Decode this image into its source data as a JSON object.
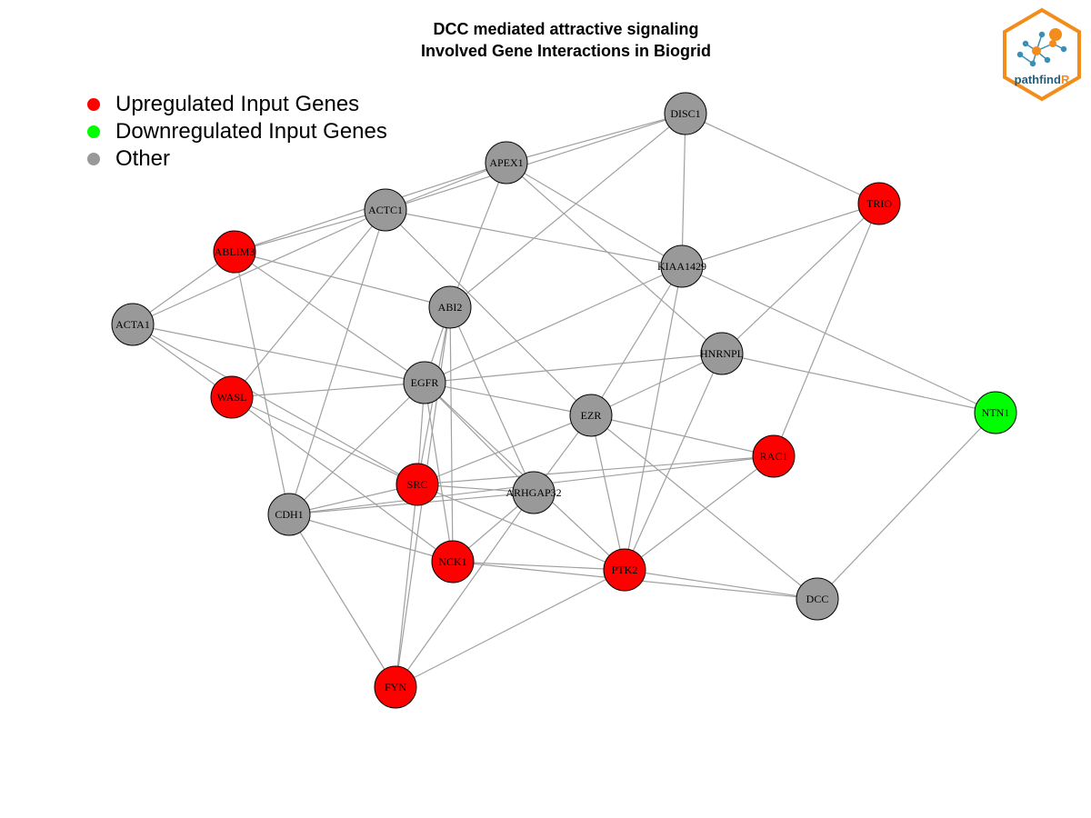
{
  "title": {
    "line1": "DCC mediated attractive signaling",
    "line2": "Involved Gene Interactions in Biogrid"
  },
  "legend": [
    {
      "label": "Upregulated Input Genes",
      "color": "#ff0000"
    },
    {
      "label": "Downregulated Input Genes",
      "color": "#00ff00"
    },
    {
      "label": "Other",
      "color": "#999999"
    }
  ],
  "logo": {
    "text_main": "pathfind",
    "text_accent": "R",
    "border_color": "#f28c1a",
    "text_color": "#1f5f7f"
  },
  "colors": {
    "up": "#ff0000",
    "down": "#00ff00",
    "other": "#999999",
    "edge": "#a0a0a0"
  },
  "nodes": [
    {
      "id": "DISC1",
      "status": "other"
    },
    {
      "id": "APEX1",
      "status": "other"
    },
    {
      "id": "TRIO",
      "status": "up"
    },
    {
      "id": "ACTC1",
      "status": "other"
    },
    {
      "id": "ABLIM3",
      "status": "up"
    },
    {
      "id": "KIAA1429",
      "status": "other"
    },
    {
      "id": "ABI2",
      "status": "other"
    },
    {
      "id": "ACTA1",
      "status": "other"
    },
    {
      "id": "HNRNPL",
      "status": "other"
    },
    {
      "id": "EGFR",
      "status": "other"
    },
    {
      "id": "WASL",
      "status": "up"
    },
    {
      "id": "NTN1",
      "status": "down"
    },
    {
      "id": "EZR",
      "status": "other"
    },
    {
      "id": "RAC1",
      "status": "up"
    },
    {
      "id": "SRC",
      "status": "up"
    },
    {
      "id": "ARHGAP32",
      "status": "other"
    },
    {
      "id": "CDH1",
      "status": "other"
    },
    {
      "id": "NCK1",
      "status": "up"
    },
    {
      "id": "PTK2",
      "status": "up"
    },
    {
      "id": "DCC",
      "status": "other"
    },
    {
      "id": "FYN",
      "status": "up"
    }
  ],
  "edges": [
    [
      "DISC1",
      "APEX1"
    ],
    [
      "DISC1",
      "TRIO"
    ],
    [
      "DISC1",
      "KIAA1429"
    ],
    [
      "DISC1",
      "ACTC1"
    ],
    [
      "DISC1",
      "ABI2"
    ],
    [
      "APEX1",
      "ACTC1"
    ],
    [
      "APEX1",
      "ABLIM3"
    ],
    [
      "APEX1",
      "ABI2"
    ],
    [
      "APEX1",
      "KIAA1429"
    ],
    [
      "APEX1",
      "HNRNPL"
    ],
    [
      "TRIO",
      "KIAA1429"
    ],
    [
      "TRIO",
      "HNRNPL"
    ],
    [
      "TRIO",
      "RAC1"
    ],
    [
      "ACTC1",
      "ABLIM3"
    ],
    [
      "ACTC1",
      "ACTA1"
    ],
    [
      "ACTC1",
      "KIAA1429"
    ],
    [
      "ACTC1",
      "WASL"
    ],
    [
      "ACTC1",
      "EZR"
    ],
    [
      "ACTC1",
      "CDH1"
    ],
    [
      "ABLIM3",
      "ACTA1"
    ],
    [
      "ABLIM3",
      "ABI2"
    ],
    [
      "ABLIM3",
      "EGFR"
    ],
    [
      "ABLIM3",
      "CDH1"
    ],
    [
      "KIAA1429",
      "EGFR"
    ],
    [
      "KIAA1429",
      "EZR"
    ],
    [
      "KIAA1429",
      "PTK2"
    ],
    [
      "KIAA1429",
      "NTN1"
    ],
    [
      "ABI2",
      "EGFR"
    ],
    [
      "ABI2",
      "NCK1"
    ],
    [
      "ABI2",
      "ARHGAP32"
    ],
    [
      "ABI2",
      "FYN"
    ],
    [
      "ABI2",
      "SRC"
    ],
    [
      "ACTA1",
      "WASL"
    ],
    [
      "ACTA1",
      "EGFR"
    ],
    [
      "ACTA1",
      "SRC"
    ],
    [
      "HNRNPL",
      "EGFR"
    ],
    [
      "HNRNPL",
      "EZR"
    ],
    [
      "HNRNPL",
      "PTK2"
    ],
    [
      "HNRNPL",
      "NTN1"
    ],
    [
      "EGFR",
      "WASL"
    ],
    [
      "EGFR",
      "EZR"
    ],
    [
      "EGFR",
      "SRC"
    ],
    [
      "EGFR",
      "ARHGAP32"
    ],
    [
      "EGFR",
      "CDH1"
    ],
    [
      "EGFR",
      "NCK1"
    ],
    [
      "EGFR",
      "PTK2"
    ],
    [
      "WASL",
      "SRC"
    ],
    [
      "WASL",
      "NCK1"
    ],
    [
      "NTN1",
      "DCC"
    ],
    [
      "EZR",
      "RAC1"
    ],
    [
      "EZR",
      "SRC"
    ],
    [
      "EZR",
      "ARHGAP32"
    ],
    [
      "EZR",
      "PTK2"
    ],
    [
      "EZR",
      "DCC"
    ],
    [
      "RAC1",
      "SRC"
    ],
    [
      "RAC1",
      "CDH1"
    ],
    [
      "RAC1",
      "PTK2"
    ],
    [
      "SRC",
      "CDH1"
    ],
    [
      "SRC",
      "ARHGAP32"
    ],
    [
      "SRC",
      "FYN"
    ],
    [
      "SRC",
      "PTK2"
    ],
    [
      "ARHGAP32",
      "CDH1"
    ],
    [
      "ARHGAP32",
      "NCK1"
    ],
    [
      "ARHGAP32",
      "FYN"
    ],
    [
      "CDH1",
      "NCK1"
    ],
    [
      "CDH1",
      "FYN"
    ],
    [
      "NCK1",
      "PTK2"
    ],
    [
      "NCK1",
      "DCC"
    ],
    [
      "PTK2",
      "DCC"
    ],
    [
      "PTK2",
      "FYN"
    ]
  ]
}
